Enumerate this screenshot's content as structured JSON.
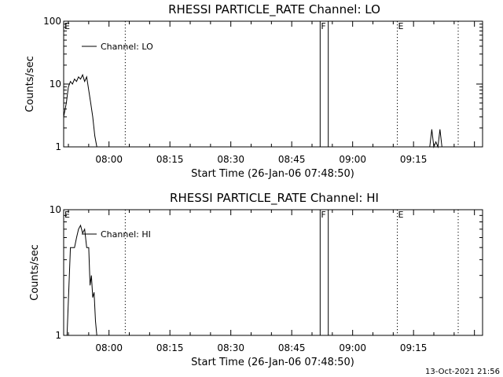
{
  "footer": {
    "timestamp": "13-Oct-2021 21:56"
  },
  "chart_data": [
    {
      "type": "line",
      "title": "RHESSI PARTICLE_RATE Channel: LO",
      "xlabel": "Start Time (26-Jan-06 07:48:50)",
      "ylabel": "Counts/sec",
      "yscale": "log",
      "ylim": [
        1,
        100
      ],
      "xlim": [
        "07:48:50",
        "09:32:00"
      ],
      "x_tick_labels": [
        "08:00",
        "08:15",
        "08:30",
        "08:45",
        "09:00",
        "09:15"
      ],
      "y_tick_labels": [
        "1",
        "10",
        "100"
      ],
      "legend": {
        "label": "Channel: LO",
        "placement": "top-left"
      },
      "markers": [
        {
          "time": "08:04:00",
          "style": "dotted"
        },
        {
          "time": "08:52:00",
          "style": "solid"
        },
        {
          "time": "08:54:00",
          "style": "solid"
        },
        {
          "time": "09:11:00",
          "style": "dotted"
        },
        {
          "time": "09:26:00",
          "style": "dotted"
        }
      ],
      "annotations": [
        {
          "text": "E",
          "time": "07:48:50"
        },
        {
          "text": "F",
          "time": "08:52:00"
        },
        {
          "text": "E",
          "time": "09:11:00"
        }
      ],
      "series": [
        {
          "x": [
            "07:48:50",
            "07:49:30",
            "07:50:00",
            "07:50:30",
            "07:51:00",
            "07:51:30",
            "07:52:00",
            "07:52:30",
            "07:53:00",
            "07:53:30",
            "07:54:00",
            "07:54:30",
            "07:55:00",
            "07:55:30",
            "07:56:00",
            "07:56:30",
            "07:57:00"
          ],
          "y": [
            3,
            5,
            9,
            11,
            10,
            12,
            11,
            13,
            12,
            14,
            11,
            13,
            8,
            5,
            3,
            1.5,
            1
          ]
        },
        {
          "x": [
            "09:19:00",
            "09:19:30",
            "09:20:00",
            "09:20:30",
            "09:21:00",
            "09:21:30",
            "09:22:00"
          ],
          "y": [
            1,
            1.9,
            1,
            1.2,
            1,
            1.9,
            1
          ]
        }
      ]
    },
    {
      "type": "line",
      "title": "RHESSI PARTICLE_RATE Channel: HI",
      "xlabel": "Start Time (26-Jan-06 07:48:50)",
      "ylabel": "Counts/sec",
      "yscale": "log",
      "ylim": [
        1,
        10
      ],
      "xlim": [
        "07:48:50",
        "09:32:00"
      ],
      "x_tick_labels": [
        "08:00",
        "08:15",
        "08:30",
        "08:45",
        "09:00",
        "09:15"
      ],
      "y_tick_labels": [
        "1",
        "10"
      ],
      "legend": {
        "label": "Channel: HI",
        "placement": "top-left"
      },
      "markers": [
        {
          "time": "08:04:00",
          "style": "dotted"
        },
        {
          "time": "08:52:00",
          "style": "solid"
        },
        {
          "time": "08:54:00",
          "style": "solid"
        },
        {
          "time": "09:11:00",
          "style": "dotted"
        },
        {
          "time": "09:26:00",
          "style": "dotted"
        }
      ],
      "annotations": [
        {
          "text": "E",
          "time": "07:48:50"
        },
        {
          "text": "F",
          "time": "08:52:00"
        },
        {
          "text": "E",
          "time": "09:11:00"
        }
      ],
      "series": [
        {
          "x": [
            "07:49:40",
            "07:50:30",
            "07:51:00",
            "07:51:30",
            "07:52:00",
            "07:52:30",
            "07:53:00",
            "07:53:30",
            "07:54:00",
            "07:54:30",
            "07:55:00",
            "07:55:20",
            "07:55:40",
            "07:56:00",
            "07:56:20",
            "07:56:40",
            "07:57:00"
          ],
          "y": [
            1,
            5,
            5,
            5,
            6,
            7,
            7.5,
            6.5,
            7,
            5,
            5,
            2.5,
            3,
            2,
            2.2,
            1.3,
            1
          ]
        }
      ]
    }
  ]
}
